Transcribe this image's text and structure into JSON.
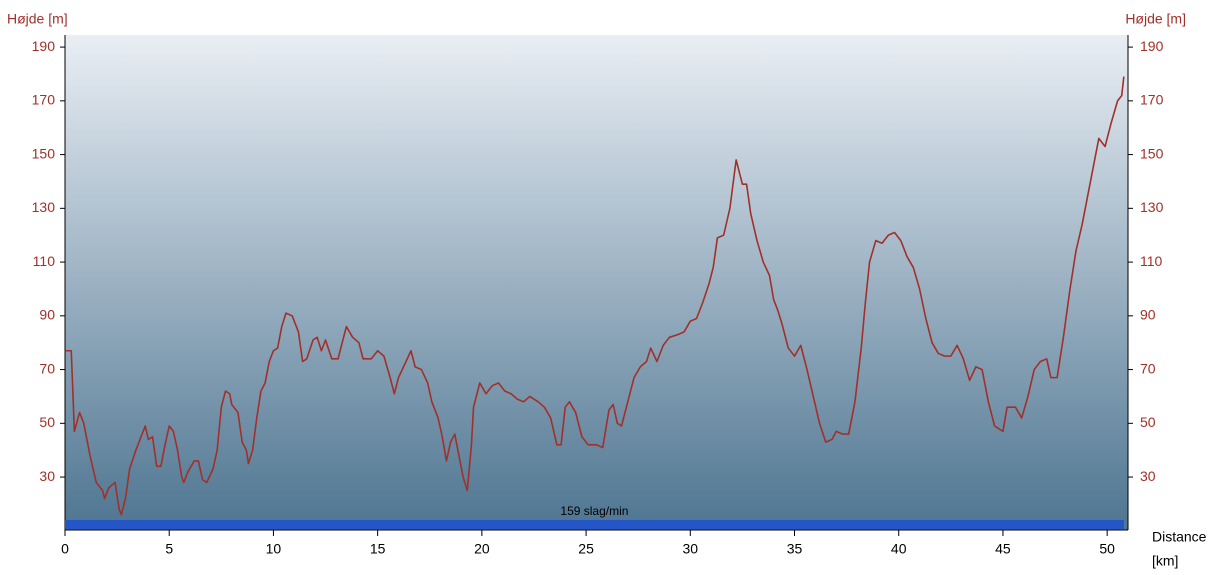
{
  "chart_data": {
    "type": "line",
    "y_label": "Højde [m]",
    "y2_label": "Højde [m]",
    "x_label": "Distance",
    "x_unit_label": "[km]",
    "heart_rate_label": "159 slag/min",
    "color": "#a1302a",
    "band_color": "#2456c8",
    "xlim": [
      0,
      51
    ],
    "xticks": [
      0,
      5,
      10,
      15,
      20,
      25,
      30,
      35,
      40,
      45,
      50
    ],
    "ylim": [
      10.3,
      194.5
    ],
    "yticks": [
      30,
      50,
      70,
      90,
      110,
      130,
      150,
      170,
      190
    ],
    "y2lim": [
      10.3,
      194.5
    ],
    "y2ticks": [
      30,
      50,
      70,
      90,
      110,
      130,
      150,
      170,
      190
    ],
    "x": [
      0,
      0.3,
      0.45,
      0.7,
      0.9,
      1.2,
      1.5,
      1.8,
      1.9,
      2.1,
      2.4,
      2.6,
      2.7,
      2.9,
      3.1,
      3.4,
      3.7,
      3.85,
      4.0,
      4.2,
      4.4,
      4.6,
      4.8,
      5.0,
      5.2,
      5.4,
      5.6,
      5.7,
      5.9,
      6.2,
      6.4,
      6.6,
      6.8,
      7.1,
      7.3,
      7.5,
      7.7,
      7.9,
      8.0,
      8.3,
      8.5,
      8.7,
      8.8,
      9.0,
      9.2,
      9.4,
      9.6,
      9.8,
      10.0,
      10.2,
      10.4,
      10.6,
      10.9,
      11.2,
      11.4,
      11.6,
      11.9,
      12.1,
      12.3,
      12.5,
      12.8,
      13.1,
      13.3,
      13.5,
      13.8,
      14.1,
      14.3,
      14.7,
      15.0,
      15.3,
      15.6,
      15.8,
      16.0,
      16.3,
      16.6,
      16.8,
      17.1,
      17.4,
      17.6,
      17.9,
      18.1,
      18.3,
      18.5,
      18.7,
      18.9,
      19.1,
      19.3,
      19.5,
      19.6,
      19.9,
      20.2,
      20.5,
      20.8,
      21.1,
      21.4,
      21.7,
      22.0,
      22.3,
      22.7,
      23.0,
      23.3,
      23.6,
      23.8,
      24.0,
      24.2,
      24.5,
      24.8,
      25.1,
      25.5,
      25.8,
      26.1,
      26.3,
      26.5,
      26.7,
      27.0,
      27.3,
      27.6,
      27.9,
      28.1,
      28.4,
      28.7,
      29.0,
      29.4,
      29.7,
      30.0,
      30.3,
      30.6,
      30.9,
      31.1,
      31.3,
      31.6,
      31.9,
      32.1,
      32.2,
      32.5,
      32.7,
      32.9,
      33.2,
      33.5,
      33.8,
      34.0,
      34.2,
      34.4,
      34.7,
      35.0,
      35.3,
      35.6,
      35.9,
      36.2,
      36.5,
      36.8,
      37.0,
      37.3,
      37.6,
      37.9,
      38.2,
      38.4,
      38.6,
      38.9,
      39.2,
      39.5,
      39.8,
      40.1,
      40.4,
      40.7,
      41.0,
      41.3,
      41.6,
      41.9,
      42.2,
      42.5,
      42.8,
      43.1,
      43.4,
      43.7,
      44.0,
      44.3,
      44.6,
      45.0,
      45.2,
      45.6,
      45.9,
      46.2,
      46.5,
      46.8,
      47.1,
      47.3,
      47.6,
      47.9,
      48.2,
      48.5,
      48.8,
      49.1,
      49.4,
      49.6,
      49.9,
      50.2,
      50.5,
      50.7,
      50.8
    ],
    "values": [
      77,
      77,
      47,
      54,
      50,
      38,
      28,
      25,
      22,
      26,
      28,
      18,
      16,
      22,
      33,
      40,
      46,
      49,
      44,
      45,
      34,
      34,
      42,
      49,
      47,
      40,
      30,
      28,
      32,
      36,
      36,
      29,
      28,
      33,
      40,
      56,
      62,
      61,
      57,
      54,
      43,
      40,
      35,
      40,
      52,
      62,
      65,
      73,
      77,
      78,
      86,
      91,
      90,
      84,
      73,
      74,
      81,
      82,
      77,
      81,
      74,
      74,
      80,
      86,
      82,
      80,
      74,
      74,
      77,
      75,
      67,
      61,
      67,
      72,
      77,
      71,
      70,
      65,
      58,
      52,
      45,
      36,
      43,
      46,
      38,
      30,
      25,
      42,
      56,
      65,
      61,
      64,
      65,
      62,
      61,
      59,
      58,
      60,
      58,
      56,
      52,
      42,
      42,
      56,
      58,
      54,
      45,
      42,
      42,
      41,
      55,
      57,
      50,
      49,
      58,
      67,
      71,
      73,
      78,
      73,
      79,
      82,
      83,
      84,
      88,
      89,
      95,
      102,
      108,
      119,
      120,
      130,
      142,
      148,
      139,
      139,
      128,
      118,
      110,
      105,
      96,
      92,
      87,
      78,
      75,
      79,
      70,
      60,
      50,
      43,
      44,
      47,
      46,
      46,
      58,
      78,
      95,
      110,
      118,
      117,
      120,
      121,
      118,
      112,
      108,
      100,
      89,
      80,
      76,
      75,
      75,
      79,
      74,
      66,
      71,
      70,
      58,
      49,
      47,
      56,
      56,
      52,
      60,
      70,
      73,
      74,
      67,
      67,
      82,
      99,
      114,
      124,
      136,
      148,
      156,
      153,
      162,
      170,
      172,
      179
    ]
  }
}
